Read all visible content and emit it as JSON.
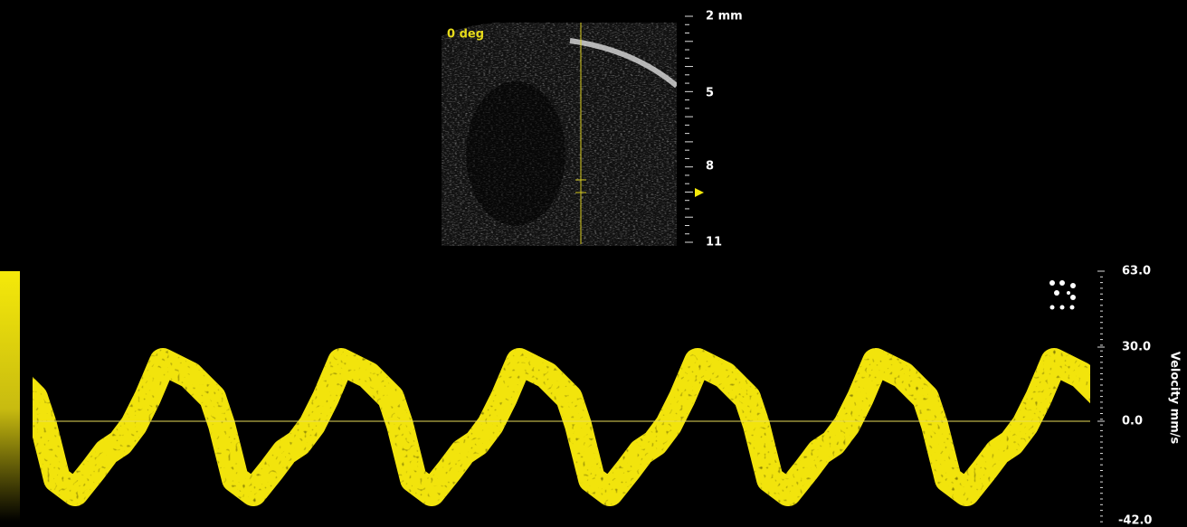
{
  "bmode": {
    "angle_label": "0 deg",
    "depth_labels": [
      "2 mm",
      "5",
      "8",
      "11"
    ]
  },
  "doppler": {
    "axis_title": "Velocity mm/s",
    "scale_labels": [
      "63.0",
      "30.0",
      "0.0",
      "-42.0"
    ]
  }
}
